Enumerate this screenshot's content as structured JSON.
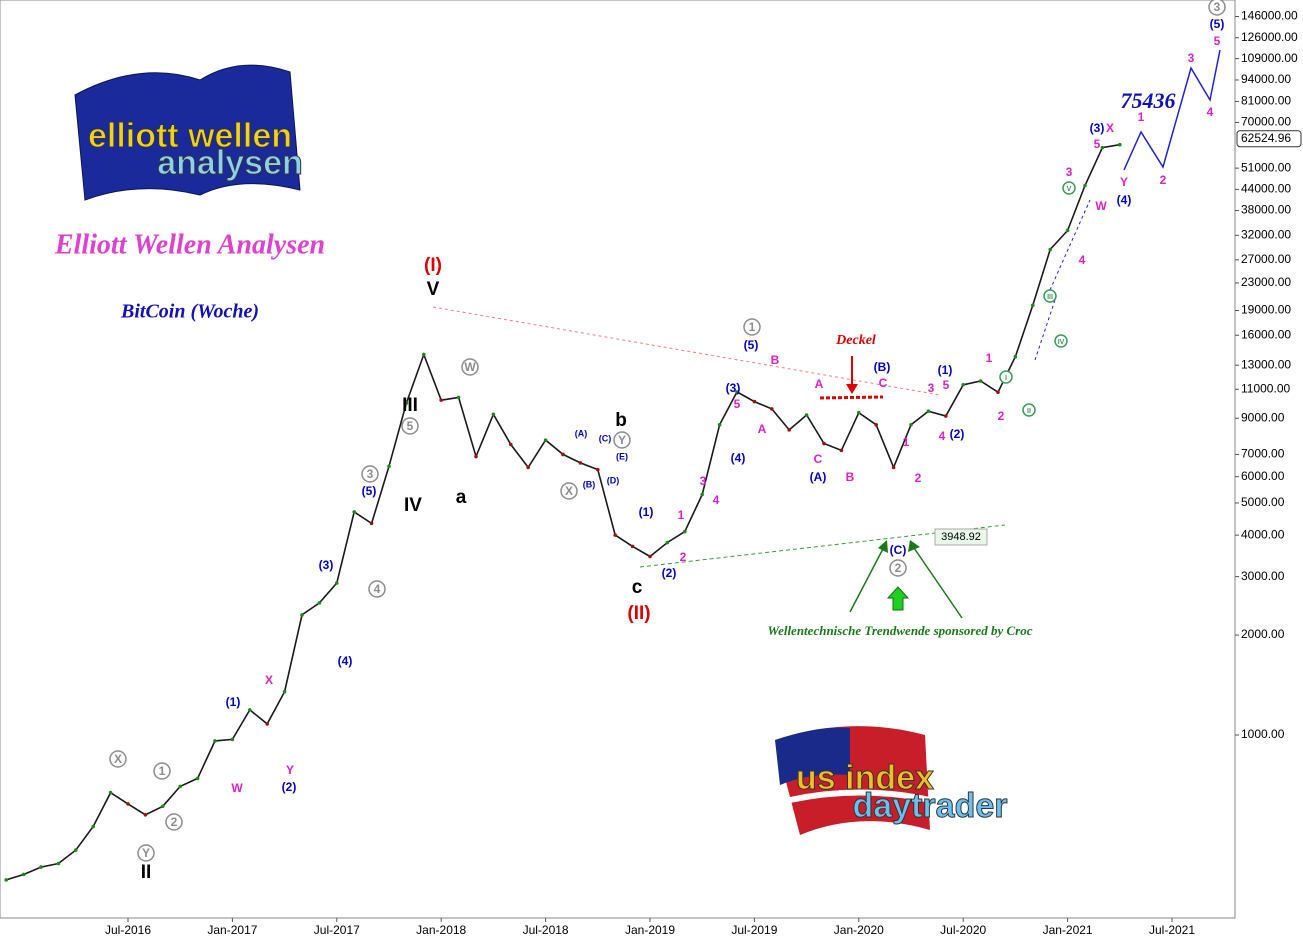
{
  "chart_data": {
    "type": "line",
    "title": "Elliott Wellen Analysen",
    "subtitle": "BitCoin (Woche)",
    "log_scale": true,
    "color": "#1a1a1a",
    "categories": [
      null,
      null,
      null,
      null,
      null,
      null,
      null,
      "Jul-2016",
      null,
      null,
      null,
      null,
      null,
      "Jan-2017",
      null,
      null,
      null,
      null,
      null,
      "Jul-2017",
      null,
      null,
      null,
      null,
      null,
      "Jan-2018",
      null,
      null,
      null,
      null,
      null,
      "Jul-2018",
      null,
      null,
      null,
      null,
      null,
      "Jan-2019",
      null,
      null,
      null,
      null,
      null,
      "Jul-2019",
      null,
      null,
      null,
      null,
      null,
      "Jan-2020",
      null,
      null,
      null,
      null,
      null,
      "Jul-2020",
      null,
      null,
      null,
      null,
      null,
      "Jan-2021",
      null,
      null,
      null,
      null,
      null,
      "Jul-2021",
      null
    ],
    "values": [
      366,
      380,
      400,
      410,
      450,
      530,
      670,
      620,
      575,
      610,
      700,
      740,
      960,
      970,
      1190,
      1080,
      1350,
      2300,
      2500,
      2870,
      4700,
      4340,
      6450,
      10000,
      14000,
      10200,
      10400,
      6900,
      9250,
      7500,
      6400,
      7730,
      7000,
      6600,
      6300,
      4000,
      3700,
      3450,
      3800,
      4100,
      5300,
      8600,
      10800,
      10100,
      9600,
      8300,
      9200,
      7550,
      7200,
      9350,
      8600,
      6400,
      8600,
      9450,
      9140,
      11350,
      11650,
      10780,
      13800,
      19700,
      29000,
      33100,
      45200,
      58800,
      60000,
      null,
      null,
      null,
      null
    ],
    "ylim": [
      281,
      163700
    ],
    "yticks": [
      {
        "value": 1000,
        "label": "1000.00"
      },
      {
        "value": 2000,
        "label": "2000.00"
      },
      {
        "value": 3000,
        "label": "3000.00"
      },
      {
        "value": 4000,
        "label": "4000.00"
      },
      {
        "value": 5000,
        "label": "5000.00"
      },
      {
        "value": 6000,
        "label": "6000.00"
      },
      {
        "value": 7000,
        "label": "7000.00"
      },
      {
        "value": 9000,
        "label": "9000.00"
      },
      {
        "value": 11000,
        "label": "11000.00"
      },
      {
        "value": 13000,
        "label": "13000.00"
      },
      {
        "value": 16000,
        "label": "16000.00"
      },
      {
        "value": 19000,
        "label": "19000.00"
      },
      {
        "value": 23000,
        "label": "23000.00"
      },
      {
        "value": 27000,
        "label": "27000.00"
      },
      {
        "value": 32000,
        "label": "32000.00"
      },
      {
        "value": 38000,
        "label": "38000.00"
      },
      {
        "value": 44000,
        "label": "44000.00"
      },
      {
        "value": 51000,
        "label": "51000.00"
      },
      {
        "value": 70000,
        "label": "70000.00"
      },
      {
        "value": 81000,
        "label": "81000.00"
      },
      {
        "value": 94000,
        "label": "94000.00"
      },
      {
        "value": 109000,
        "label": "109000.00"
      },
      {
        "value": 126000,
        "label": "126000.00"
      },
      {
        "value": 146000,
        "label": "146000.00"
      }
    ],
    "last_price": 62524.96,
    "low_label": 3948.92,
    "target": "75436",
    "note_cap": "Deckel",
    "note_trend": "Wellentechnische Trendwende sponsored by Croc",
    "logo_top": [
      "elliott wellen",
      "analysen"
    ],
    "logo_bottom": [
      "us index",
      "daytrader"
    ],
    "annotations": [
      {
        "text": "(I)",
        "color": "#e00000"
      },
      {
        "text": "V",
        "color": "#000000"
      },
      {
        "text": "III",
        "color": "#000000"
      },
      {
        "text": "IV",
        "color": "#000000"
      },
      {
        "text": "a",
        "color": "#000000"
      },
      {
        "text": "b",
        "color": "#000000"
      },
      {
        "text": "c",
        "color": "#000000"
      },
      {
        "text": "(II)",
        "color": "#e00000"
      },
      {
        "text": "II",
        "color": "#000000"
      },
      {
        "text": "X",
        "color": "#8c8c8c",
        "shape": "circle"
      },
      {
        "text": "Y",
        "color": "#8c8c8c",
        "shape": "circle"
      },
      {
        "text": "1",
        "color": "#8c8c8c",
        "shape": "circle"
      },
      {
        "text": "2",
        "color": "#8c8c8c",
        "shape": "circle"
      },
      {
        "text": "3",
        "color": "#8c8c8c",
        "shape": "circle"
      },
      {
        "text": "4",
        "color": "#8c8c8c",
        "shape": "circle"
      },
      {
        "text": "5",
        "color": "#8c8c8c",
        "shape": "circle"
      },
      {
        "text": "W",
        "color": "#8c8c8c",
        "shape": "circle"
      },
      {
        "text": "X",
        "color": "#8c8c8c",
        "shape": "circle"
      },
      {
        "text": "Y",
        "color": "#8c8c8c",
        "shape": "circle"
      },
      {
        "text": "1",
        "color": "#8c8c8c",
        "shape": "circle"
      },
      {
        "text": "2",
        "color": "#8c8c8c",
        "shape": "circle"
      },
      {
        "text": "3",
        "color": "#8c8c8c",
        "shape": "circle"
      },
      {
        "text": "(1)",
        "color": "#0000cc"
      },
      {
        "text": "(2)",
        "color": "#0000cc"
      },
      {
        "text": "(3)",
        "color": "#0000cc"
      },
      {
        "text": "(4)",
        "color": "#0000cc"
      },
      {
        "text": "(5)",
        "color": "#0000cc"
      },
      {
        "text": "(1)",
        "color": "#0000cc"
      },
      {
        "text": "(2)",
        "color": "#0000cc"
      },
      {
        "text": "(3)",
        "color": "#0000cc"
      },
      {
        "text": "(4)",
        "color": "#0000cc"
      },
      {
        "text": "(5)",
        "color": "#0000cc"
      },
      {
        "text": "(A)",
        "color": "#0000cc"
      },
      {
        "text": "(B)",
        "color": "#0000cc"
      },
      {
        "text": "(C)",
        "color": "#0000cc"
      },
      {
        "text": "(1)",
        "color": "#0000cc"
      },
      {
        "text": "(2)",
        "color": "#0000cc"
      },
      {
        "text": "(3)",
        "color": "#0000cc"
      },
      {
        "text": "(4)",
        "color": "#0000cc"
      },
      {
        "text": "(5)",
        "color": "#0000cc"
      },
      {
        "text": "(A)",
        "color": "#0000cc",
        "size": "small"
      },
      {
        "text": "(B)",
        "color": "#0000cc",
        "size": "small"
      },
      {
        "text": "(C)",
        "color": "#0000cc",
        "size": "small"
      },
      {
        "text": "(D)",
        "color": "#0000cc",
        "size": "small"
      },
      {
        "text": "(E)",
        "color": "#0000cc",
        "size": "small"
      },
      {
        "text": "X",
        "color": "#e020c8"
      },
      {
        "text": "Y",
        "color": "#e020c8"
      },
      {
        "text": "W",
        "color": "#e020c8"
      },
      {
        "text": "1",
        "color": "#e020c8"
      },
      {
        "text": "2",
        "color": "#e020c8"
      },
      {
        "text": "3",
        "color": "#e020c8"
      },
      {
        "text": "4",
        "color": "#e020c8"
      },
      {
        "text": "5",
        "color": "#e020c8"
      },
      {
        "text": "A",
        "color": "#e020c8"
      },
      {
        "text": "B",
        "color": "#e020c8"
      },
      {
        "text": "A",
        "color": "#e020c8"
      },
      {
        "text": "C",
        "color": "#e020c8"
      },
      {
        "text": "B",
        "color": "#e020c8"
      },
      {
        "text": "C",
        "color": "#e020c8"
      },
      {
        "text": "1",
        "color": "#e020c8"
      },
      {
        "text": "2",
        "color": "#e020c8"
      },
      {
        "text": "3",
        "color": "#e020c8"
      },
      {
        "text": "4",
        "color": "#e020c8"
      },
      {
        "text": "5",
        "color": "#e020c8"
      },
      {
        "text": "1",
        "color": "#e020c8"
      },
      {
        "text": "2",
        "color": "#e020c8"
      },
      {
        "text": "3",
        "color": "#e020c8"
      },
      {
        "text": "4",
        "color": "#e020c8"
      },
      {
        "text": "5",
        "color": "#e020c8"
      },
      {
        "text": "X",
        "color": "#e020c8"
      },
      {
        "text": "Y",
        "color": "#e020c8"
      },
      {
        "text": "W",
        "color": "#e020c8"
      },
      {
        "text": "1",
        "color": "#e020c8"
      },
      {
        "text": "2",
        "color": "#e020c8"
      },
      {
        "text": "3",
        "color": "#e020c8"
      },
      {
        "text": "4",
        "color": "#e020c8"
      },
      {
        "text": "5",
        "color": "#e020c8"
      },
      {
        "text": "I",
        "color": "#3a9a5a",
        "shape": "circle",
        "size": "small"
      },
      {
        "text": "II",
        "color": "#3a9a5a",
        "shape": "circle",
        "size": "small"
      },
      {
        "text": "III",
        "color": "#3a9a5a",
        "shape": "circle",
        "size": "small"
      },
      {
        "text": "IV",
        "color": "#3a9a5a",
        "shape": "circle",
        "size": "small"
      },
      {
        "text": "V",
        "color": "#3a9a5a",
        "shape": "circle",
        "size": "small"
      }
    ]
  }
}
